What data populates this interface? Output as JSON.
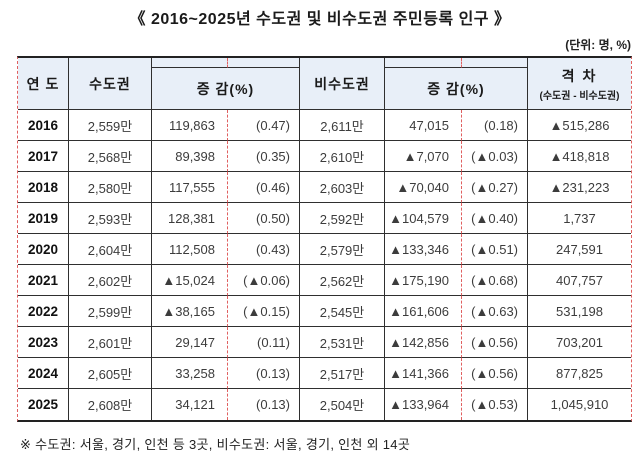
{
  "title": "《 2016~2025년 수도권 및 비수도권 주민등록 인구 》",
  "unit_label": "(단위: 명, %)",
  "footnote": "※ 수도권: 서울, 경기, 인천 등 3곳, 비수도권: 서울, 경기, 인천 외 14곳",
  "colors": {
    "header_bg": "#e8eff8",
    "solid_border": "#2f2f2f",
    "guide_line": "#e06060",
    "text": "#3c3c3c"
  },
  "table": {
    "headers": {
      "year": "연 도",
      "capital": "수도권",
      "capital_change": "증 감(%)",
      "noncapital": "비수도권",
      "noncapital_change": "증 감(%)",
      "gap_title": "격 차",
      "gap_sub": "(수도권 - 비수도권)"
    },
    "rows": [
      {
        "year": "2016",
        "cap": "2,559만",
        "cap_chg": "119,863",
        "cap_pct": "(0.47)",
        "non": "2,611만",
        "non_chg": "47,015",
        "non_pct": "(0.18)",
        "gap": "▲515,286"
      },
      {
        "year": "2017",
        "cap": "2,568만",
        "cap_chg": "89,398",
        "cap_pct": "(0.35)",
        "non": "2,610만",
        "non_chg": "▲7,070",
        "non_pct": "(▲0.03)",
        "gap": "▲418,818"
      },
      {
        "year": "2018",
        "cap": "2,580만",
        "cap_chg": "117,555",
        "cap_pct": "(0.46)",
        "non": "2,603만",
        "non_chg": "▲70,040",
        "non_pct": "(▲0.27)",
        "gap": "▲231,223"
      },
      {
        "year": "2019",
        "cap": "2,593만",
        "cap_chg": "128,381",
        "cap_pct": "(0.50)",
        "non": "2,592만",
        "non_chg": "▲104,579",
        "non_pct": "(▲0.40)",
        "gap": "1,737"
      },
      {
        "year": "2020",
        "cap": "2,604만",
        "cap_chg": "112,508",
        "cap_pct": "(0.43)",
        "non": "2,579만",
        "non_chg": "▲133,346",
        "non_pct": "(▲0.51)",
        "gap": "247,591"
      },
      {
        "year": "2021",
        "cap": "2,602만",
        "cap_chg": "▲15,024",
        "cap_pct": "(▲0.06)",
        "non": "2,562만",
        "non_chg": "▲175,190",
        "non_pct": "(▲0.68)",
        "gap": "407,757"
      },
      {
        "year": "2022",
        "cap": "2,599만",
        "cap_chg": "▲38,165",
        "cap_pct": "(▲0.15)",
        "non": "2,545만",
        "non_chg": "▲161,606",
        "non_pct": "(▲0.63)",
        "gap": "531,198"
      },
      {
        "year": "2023",
        "cap": "2,601만",
        "cap_chg": "29,147",
        "cap_pct": "(0.11)",
        "non": "2,531만",
        "non_chg": "▲142,856",
        "non_pct": "(▲0.56)",
        "gap": "703,201"
      },
      {
        "year": "2024",
        "cap": "2,605만",
        "cap_chg": "33,258",
        "cap_pct": "(0.13)",
        "non": "2,517만",
        "non_chg": "▲141,366",
        "non_pct": "(▲0.56)",
        "gap": "877,825"
      },
      {
        "year": "2025",
        "cap": "2,608만",
        "cap_chg": "34,121",
        "cap_pct": "(0.13)",
        "non": "2,504만",
        "non_chg": "▲133,964",
        "non_pct": "(▲0.53)",
        "gap": "1,045,910"
      }
    ]
  }
}
